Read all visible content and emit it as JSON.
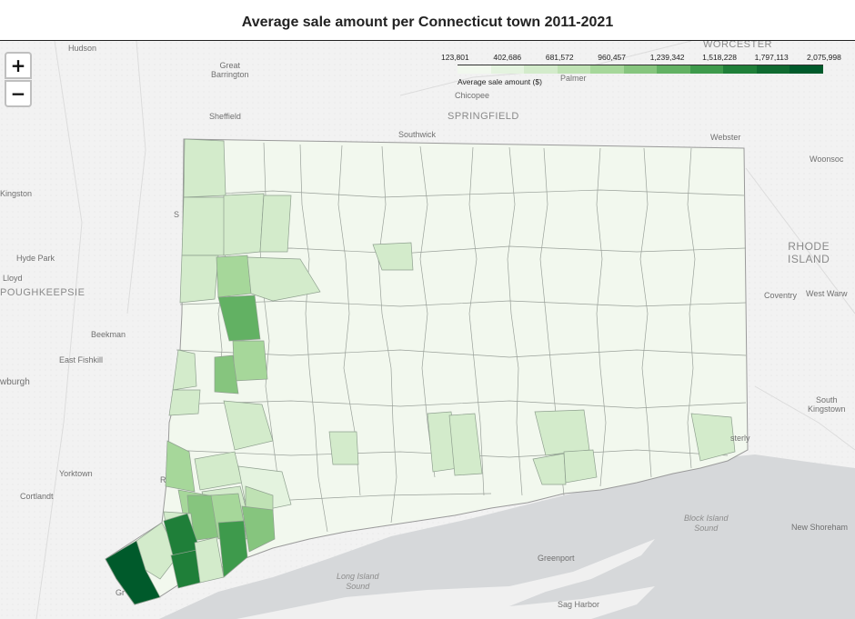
{
  "title": "Average sale amount per Connecticut town 2011-2021",
  "zoom": {
    "in_label": "+",
    "out_label": "−"
  },
  "legend": {
    "title": "Average sale amount ($)",
    "ticks": [
      "123,801",
      "402,686",
      "681,572",
      "960,457",
      "1,239,342",
      "1,518,228",
      "1,797,113",
      "2,075,998"
    ],
    "colors": [
      "#f1f8ee",
      "#e4f3df",
      "#d3ebcb",
      "#bfe2b4",
      "#a6d79a",
      "#86c57e",
      "#62b163",
      "#3e9a4c",
      "#1f7f39",
      "#0f6a30",
      "#005a2b"
    ]
  },
  "labels": {
    "hudson": "Hudson",
    "great_barrington": "Great\nBarrington",
    "sheffield": "Sheffield",
    "southwick": "Southwick",
    "springfield": "SPRINGFIELD",
    "chicopee": "Chicopee",
    "palmer": "Palmer",
    "worcester": "WORCESTER",
    "webster": "Webster",
    "woonsocket": "Woonsoc",
    "kingston": "Kingston",
    "hyde_park": "Hyde Park",
    "lloyd": "Lloyd",
    "poughkeepsie": "POUGHKEEPSIE",
    "beekman": "Beekman",
    "east_fishkill": "East Fishkill",
    "newburgh": "wburgh",
    "rhode_island": "RHODE\nISLAND",
    "coventry": "Coventry",
    "west_warwick": "West Warw",
    "south_kingstown": "South\nKingstown",
    "westerly": "sterly",
    "yorktown": "Yorktown",
    "cortlandt": "Cortlandt",
    "block_island_sound": "Block Island\nSound",
    "new_shoreham": "New Shoreham",
    "long_island_sound": "Long Island\nSound",
    "greenport": "Greenport",
    "sag_harbor": "Sag Harbor",
    "greenwich_cut": "Gr",
    "ridgefield_cut": "R",
    "sharon_cut": "S"
  }
}
